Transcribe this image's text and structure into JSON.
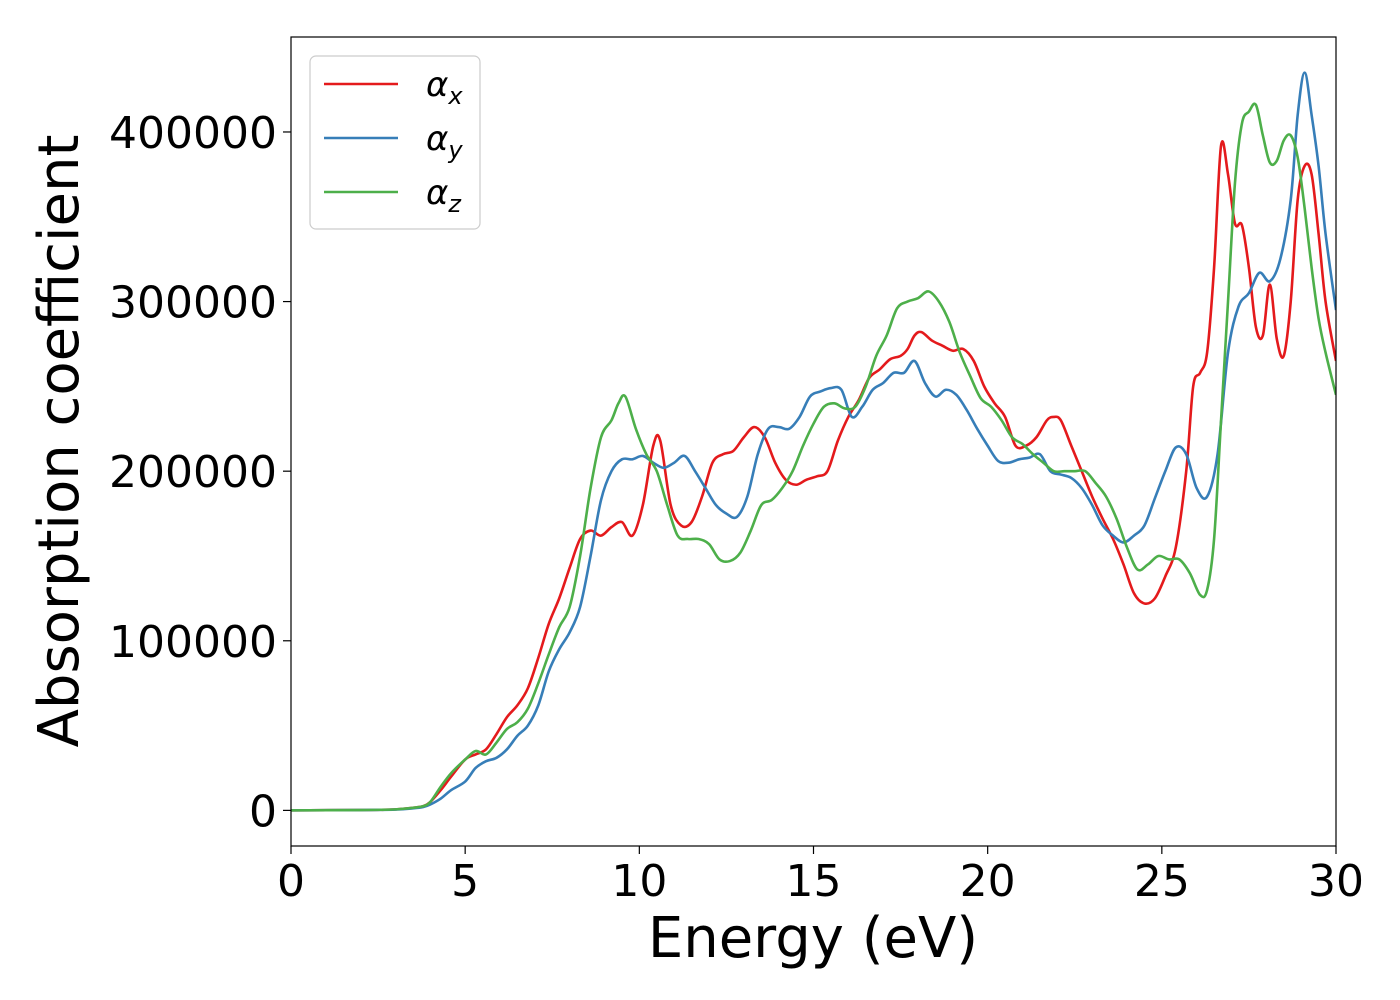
{
  "chart_data": {
    "type": "line",
    "title": "",
    "xlabel": "Energy (eV)",
    "ylabel": "Absorption coefficient",
    "xlim": [
      0,
      30
    ],
    "ylim": [
      -21000,
      456000
    ],
    "xticks": [
      0,
      5,
      10,
      15,
      20,
      25,
      30
    ],
    "xtick_labels": [
      "0",
      "5",
      "10",
      "15",
      "20",
      "25",
      "30"
    ],
    "yticks": [
      0,
      100000,
      200000,
      300000,
      400000
    ],
    "ytick_labels": [
      "0",
      "100000",
      "200000",
      "300000",
      "400000"
    ],
    "grid": false,
    "legend_position": "top-left",
    "series": [
      {
        "name": "α_x",
        "legend_base": "α",
        "legend_sub": "x",
        "color": "#e41a1c",
        "x": [
          0,
          2,
          3,
          3.5,
          3.8,
          4,
          4.3,
          4.6,
          5,
          5.3,
          5.6,
          5.9,
          6.2,
          6.5,
          6.8,
          7.1,
          7.4,
          7.7,
          8,
          8.3,
          8.6,
          8.9,
          9.2,
          9.5,
          9.8,
          10.1,
          10.4,
          10.6,
          10.9,
          11.2,
          11.5,
          11.8,
          12.1,
          12.4,
          12.7,
          13,
          13.3,
          13.6,
          13.9,
          14.2,
          14.5,
          14.8,
          15.1,
          15.4,
          15.7,
          16,
          16.3,
          16.6,
          16.9,
          17.2,
          17.5,
          17.7,
          17.9,
          18.1,
          18.4,
          18.7,
          19,
          19.3,
          19.6,
          19.9,
          20.2,
          20.5,
          20.8,
          21.1,
          21.4,
          21.7,
          21.9,
          22.1,
          22.4,
          22.7,
          23,
          23.3,
          23.6,
          23.9,
          24.2,
          24.5,
          24.8,
          25.1,
          25.4,
          25.7,
          25.9,
          26.1,
          26.3,
          26.5,
          26.7,
          26.9,
          27.1,
          27.3,
          27.5,
          27.7,
          27.9,
          28.1,
          28.3,
          28.5,
          28.7,
          28.9,
          29.1,
          29.3,
          29.5,
          29.7,
          30
        ],
        "y": [
          0,
          200,
          600,
          1500,
          2500,
          5000,
          12000,
          20000,
          30000,
          33000,
          36000,
          45000,
          55000,
          62000,
          72000,
          90000,
          110000,
          125000,
          143000,
          160000,
          165000,
          162000,
          167000,
          170000,
          162000,
          180000,
          215000,
          218000,
          180000,
          168000,
          170000,
          185000,
          205000,
          210000,
          212000,
          220000,
          226000,
          220000,
          205000,
          195000,
          192000,
          195000,
          197000,
          200000,
          218000,
          232000,
          242000,
          255000,
          260000,
          266000,
          268000,
          272000,
          280000,
          282000,
          277000,
          274000,
          271000,
          272000,
          265000,
          250000,
          240000,
          232000,
          215000,
          215000,
          220000,
          230000,
          232000,
          230000,
          215000,
          200000,
          185000,
          172000,
          160000,
          145000,
          128000,
          122000,
          125000,
          138000,
          155000,
          200000,
          250000,
          258000,
          270000,
          320000,
          392000,
          375000,
          346000,
          345000,
          320000,
          285000,
          280000,
          310000,
          278000,
          268000,
          300000,
          360000,
          380000,
          375000,
          340000,
          300000,
          265000
        ]
      },
      {
        "name": "α_y",
        "legend_base": "α",
        "legend_sub": "y",
        "color": "#377eb8",
        "x": [
          0,
          2,
          3,
          3.5,
          3.8,
          4,
          4.3,
          4.6,
          5,
          5.3,
          5.6,
          5.9,
          6.2,
          6.5,
          6.8,
          7.1,
          7.4,
          7.7,
          8,
          8.3,
          8.6,
          8.9,
          9.2,
          9.5,
          9.8,
          10.1,
          10.4,
          10.7,
          11,
          11.3,
          11.6,
          11.9,
          12.2,
          12.5,
          12.8,
          13.1,
          13.4,
          13.7,
          14,
          14.3,
          14.6,
          14.9,
          15.2,
          15.5,
          15.8,
          16.1,
          16.4,
          16.7,
          17,
          17.3,
          17.6,
          17.9,
          18.2,
          18.5,
          18.8,
          19.1,
          19.4,
          19.7,
          20,
          20.3,
          20.6,
          20.9,
          21.2,
          21.5,
          21.8,
          22.1,
          22.4,
          22.7,
          23,
          23.3,
          23.6,
          23.9,
          24.2,
          24.5,
          24.8,
          25.1,
          25.4,
          25.7,
          26,
          26.3,
          26.6,
          26.9,
          27.2,
          27.5,
          27.8,
          28.1,
          28.4,
          28.7,
          28.9,
          29.1,
          29.3,
          29.5,
          29.7,
          30
        ],
        "y": [
          0,
          200,
          500,
          1200,
          2000,
          3500,
          7000,
          12000,
          17000,
          25000,
          29000,
          31000,
          36000,
          44000,
          50000,
          62000,
          82000,
          95000,
          105000,
          120000,
          150000,
          183000,
          200000,
          207000,
          207000,
          209000,
          205000,
          202000,
          205000,
          209000,
          200000,
          190000,
          180000,
          175000,
          173000,
          185000,
          210000,
          225000,
          226000,
          225000,
          232000,
          244000,
          247000,
          249000,
          248000,
          232000,
          238000,
          248000,
          252000,
          258000,
          258000,
          265000,
          252000,
          244000,
          248000,
          245000,
          236000,
          225000,
          215000,
          206000,
          205000,
          207000,
          208000,
          210000,
          200000,
          198000,
          196000,
          190000,
          180000,
          168000,
          162000,
          158000,
          162000,
          168000,
          184000,
          200000,
          214000,
          210000,
          190000,
          185000,
          210000,
          270000,
          297000,
          305000,
          317000,
          312000,
          325000,
          360000,
          410000,
          435000,
          410000,
          380000,
          340000,
          295000
        ]
      },
      {
        "name": "α_z",
        "legend_base": "α",
        "legend_sub": "z",
        "color": "#4daf4a",
        "x": [
          0,
          2,
          3,
          3.5,
          3.8,
          4,
          4.3,
          4.6,
          5,
          5.3,
          5.6,
          5.9,
          6.2,
          6.5,
          6.8,
          7.1,
          7.4,
          7.7,
          8,
          8.3,
          8.6,
          8.9,
          9.2,
          9.4,
          9.6,
          9.9,
          10.2,
          10.5,
          10.8,
          11.1,
          11.4,
          11.7,
          12,
          12.3,
          12.6,
          12.9,
          13.2,
          13.5,
          13.8,
          14.1,
          14.4,
          14.7,
          15,
          15.3,
          15.6,
          15.9,
          16.2,
          16.5,
          16.8,
          17.1,
          17.4,
          17.7,
          18,
          18.3,
          18.6,
          18.9,
          19.2,
          19.5,
          19.8,
          20.1,
          20.4,
          20.7,
          21,
          21.3,
          21.6,
          21.9,
          22.2,
          22.5,
          22.8,
          23.1,
          23.4,
          23.7,
          24,
          24.3,
          24.6,
          24.9,
          25.2,
          25.5,
          25.8,
          26.1,
          26.3,
          26.5,
          26.7,
          26.9,
          27.1,
          27.3,
          27.5,
          27.7,
          27.9,
          28.1,
          28.3,
          28.5,
          28.7,
          28.9,
          29.1,
          29.3,
          29.5,
          29.7,
          30
        ],
        "y": [
          0,
          200,
          600,
          1500,
          2500,
          5000,
          14000,
          22000,
          30000,
          35000,
          33000,
          40000,
          48000,
          52000,
          60000,
          75000,
          92000,
          108000,
          120000,
          150000,
          190000,
          220000,
          230000,
          240000,
          244000,
          225000,
          210000,
          200000,
          180000,
          162000,
          160000,
          160000,
          157000,
          148000,
          147000,
          152000,
          165000,
          180000,
          183000,
          190000,
          200000,
          215000,
          228000,
          238000,
          240000,
          237000,
          238000,
          250000,
          268000,
          280000,
          296000,
          300000,
          302000,
          306000,
          300000,
          288000,
          270000,
          256000,
          243000,
          238000,
          230000,
          220000,
          216000,
          210000,
          205000,
          200000,
          200000,
          200000,
          200000,
          193000,
          185000,
          172000,
          155000,
          142000,
          145000,
          150000,
          148000,
          148000,
          140000,
          127000,
          130000,
          160000,
          230000,
          300000,
          370000,
          405000,
          412000,
          416000,
          398000,
          382000,
          383000,
          395000,
          398000,
          385000,
          355000,
          320000,
          290000,
          270000,
          245000
        ]
      }
    ]
  }
}
